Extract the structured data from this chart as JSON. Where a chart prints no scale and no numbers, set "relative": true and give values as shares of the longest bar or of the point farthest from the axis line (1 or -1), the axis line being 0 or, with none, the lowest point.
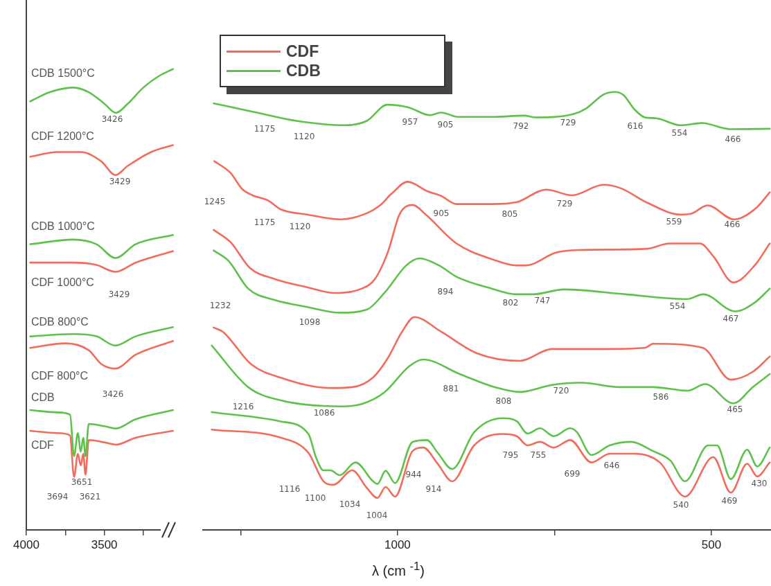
{
  "chart_data": [
    {
      "type": "line",
      "relative": true,
      "xlim": [
        4000,
        3050
      ],
      "xticks": [
        4000,
        {
          "value": 3750,
          "label": null
        },
        3500,
        {
          "value": 3250,
          "label": null
        }
      ],
      "marker": "none",
      "line_style": "solid",
      "series": [
        {
          "name": "CDB 1500°C",
          "color": "#5dc24a",
          "x": [
            3975,
            3850,
            3700,
            3600,
            3500,
            3426,
            3350,
            3250,
            3150,
            3060
          ],
          "values": [
            0.93,
            0.95,
            0.96,
            0.95,
            0.925,
            0.905,
            0.925,
            0.96,
            0.985,
            1.0
          ]
        },
        {
          "name": "CDF 1200°C",
          "color": "#f26b5b",
          "x": [
            3975,
            3800,
            3650,
            3520,
            3429,
            3350,
            3200,
            3060
          ],
          "values": [
            0.81,
            0.82,
            0.82,
            0.8,
            0.77,
            0.79,
            0.82,
            0.835
          ]
        },
        {
          "name": "CDB 1000°C",
          "color": "#5dc24a",
          "x": [
            3975,
            3700,
            3550,
            3429,
            3300,
            3060
          ],
          "values": [
            0.62,
            0.63,
            0.62,
            0.59,
            0.62,
            0.64
          ]
        },
        {
          "name": "CDF 1000°C",
          "color": "#f26b5b",
          "x": [
            3975,
            3700,
            3550,
            3429,
            3300,
            3060
          ],
          "values": [
            0.58,
            0.58,
            0.575,
            0.56,
            0.58,
            0.605
          ]
        },
        {
          "name": "CDB 800°C",
          "color": "#5dc24a",
          "x": [
            3975,
            3700,
            3550,
            3429,
            3300,
            3060
          ],
          "values": [
            0.42,
            0.425,
            0.42,
            0.4,
            0.42,
            0.44
          ]
        },
        {
          "name": "CDF 800°C",
          "color": "#f26b5b",
          "x": [
            3975,
            3750,
            3600,
            3520,
            3429,
            3300,
            3060
          ],
          "values": [
            0.395,
            0.405,
            0.39,
            0.36,
            0.35,
            0.38,
            0.41
          ]
        },
        {
          "name": "CDB",
          "color": "#5dc24a",
          "x": [
            3975,
            3800,
            3720,
            3694,
            3670,
            3651,
            3635,
            3621,
            3600,
            3500,
            3426,
            3300,
            3060
          ],
          "values": [
            0.26,
            0.255,
            0.25,
            0.16,
            0.21,
            0.17,
            0.2,
            0.16,
            0.23,
            0.225,
            0.22,
            0.24,
            0.26
          ]
        },
        {
          "name": "CDF",
          "color": "#f26b5b",
          "x": [
            3975,
            3800,
            3720,
            3694,
            3670,
            3651,
            3635,
            3621,
            3600,
            3500,
            3426,
            3300,
            3060
          ],
          "values": [
            0.215,
            0.21,
            0.205,
            0.115,
            0.165,
            0.14,
            0.165,
            0.12,
            0.195,
            0.19,
            0.185,
            0.2,
            0.215
          ]
        }
      ],
      "annotations": [
        "3426",
        "3429",
        "3429",
        "3426",
        "3651",
        "3694",
        "3621"
      ]
    },
    {
      "type": "line",
      "relative": true,
      "xlim": [
        1310,
        405
      ],
      "xticks": [
        {
          "value": 1250,
          "label": null
        },
        1000,
        {
          "value": 750,
          "label": null
        },
        500
      ],
      "xlabel": "λ (cm $^{-1}$)",
      "marker": "none",
      "line_style": "solid",
      "legend": "top left",
      "series": [
        {
          "color": "#5dc24a",
          "x": [
            1293,
            1231,
            1161,
            1084,
            1049,
            1016,
            983,
            948,
            931,
            903,
            850,
            798,
            780,
            721,
            700,
            672,
            654,
            640,
            623,
            606,
            588,
            549,
            515,
            470,
            407
          ],
          "values": [
            0.974,
            0.955,
            0.934,
            0.924,
            0.934,
            0.971,
            0.965,
            0.947,
            0.953,
            0.943,
            0.943,
            0.946,
            0.942,
            0.949,
            0.962,
            0.994,
            1.0,
            0.993,
            0.961,
            0.942,
            0.94,
            0.924,
            0.929,
            0.915,
            0.916
          ]
        },
        {
          "color": "#f26b5b",
          "x": [
            1292,
            1266,
            1248,
            1231,
            1206,
            1186,
            1144,
            1091,
            1049,
            1028,
            1010,
            984,
            952,
            931,
            906,
            850,
            811,
            763,
            722,
            672,
            644,
            602,
            549,
            532,
            506,
            464,
            428,
            407
          ],
          "values": [
            0.842,
            0.815,
            0.779,
            0.764,
            0.752,
            0.732,
            0.72,
            0.709,
            0.723,
            0.741,
            0.767,
            0.795,
            0.773,
            0.763,
            0.744,
            0.744,
            0.748,
            0.777,
            0.764,
            0.788,
            0.78,
            0.747,
            0.72,
            0.722,
            0.741,
            0.709,
            0.736,
            0.771
          ]
        },
        {
          "color": "#5dc24a",
          "x": [
            1293,
            1269,
            1238,
            1196,
            1144,
            1091,
            1049,
            1021,
            986,
            965,
            934,
            906,
            850,
            811,
            784,
            735,
            637,
            539,
            513,
            462,
            431,
            407
          ],
          "values": [
            0.638,
            0.614,
            0.551,
            0.525,
            0.509,
            0.496,
            0.503,
            0.541,
            0.604,
            0.62,
            0.604,
            0.578,
            0.551,
            0.538,
            0.538,
            0.549,
            0.538,
            0.527,
            0.538,
            0.499,
            0.519,
            0.551
          ]
        },
        {
          "color": "#f26b5b",
          "x": [
            1293,
            1266,
            1235,
            1196,
            1144,
            1099,
            1057,
            1036,
            1015,
            997,
            976,
            955,
            906,
            847,
            811,
            795,
            748,
            714,
            602,
            567,
            518,
            497,
            465,
            431,
            407
          ],
          "values": [
            0.685,
            0.657,
            0.598,
            0.573,
            0.554,
            0.541,
            0.551,
            0.573,
            0.636,
            0.72,
            0.742,
            0.72,
            0.654,
            0.617,
            0.604,
            0.604,
            0.633,
            0.639,
            0.642,
            0.654,
            0.654,
            0.625,
            0.565,
            0.604,
            0.654
          ]
        },
        {
          "color": "#5dc24a",
          "x": [
            1296,
            1238,
            1187,
            1090,
            1056,
            1021,
            981,
            959,
            901,
            845,
            805,
            754,
            708,
            645,
            593,
            537,
            510,
            465,
            434,
            407
          ],
          "values": [
            0.421,
            0.326,
            0.296,
            0.282,
            0.288,
            0.314,
            0.374,
            0.389,
            0.356,
            0.326,
            0.315,
            0.331,
            0.336,
            0.326,
            0.326,
            0.318,
            0.333,
            0.289,
            0.326,
            0.356
          ]
        },
        {
          "color": "#f26b5b",
          "x": [
            1293,
            1278,
            1233,
            1187,
            1107,
            1072,
            1039,
            1016,
            993,
            973,
            930,
            873,
            805,
            754,
            674,
            605,
            593,
            514,
            469,
            434,
            407
          ],
          "values": [
            0.462,
            0.452,
            0.378,
            0.348,
            0.324,
            0.326,
            0.348,
            0.391,
            0.452,
            0.486,
            0.452,
            0.403,
            0.386,
            0.413,
            0.413,
            0.416,
            0.425,
            0.416,
            0.343,
            0.361,
            0.396
          ]
        },
        {
          "name": "CDB",
          "color": "#5dc24a",
          "x": [
            1296,
            1187,
            1142,
            1130,
            1118,
            1107,
            1092,
            1067,
            1039,
            1032,
            1019,
            1004,
            976,
            953,
            936,
            913,
            878,
            833,
            810,
            793,
            773,
            751,
            725,
            714,
            691,
            662,
            628,
            593,
            565,
            542,
            505,
            491,
            469,
            443,
            427,
            407
          ],
          "values": [
            0.269,
            0.248,
            0.219,
            0.166,
            0.136,
            0.136,
            0.125,
            0.154,
            0.111,
            0.105,
            0.135,
            0.107,
            0.201,
            0.205,
            0.176,
            0.139,
            0.223,
            0.255,
            0.248,
            0.22,
            0.232,
            0.214,
            0.232,
            0.223,
            0.171,
            0.193,
            0.201,
            0.18,
            0.158,
            0.111,
            0.193,
            0.193,
            0.116,
            0.183,
            0.145,
            0.188
          ]
        },
        {
          "name": "CDF",
          "color": "#f26b5b",
          "x": [
            1296,
            1187,
            1142,
            1118,
            1102,
            1072,
            1050,
            1032,
            1019,
            1004,
            976,
            959,
            936,
            913,
            878,
            833,
            810,
            793,
            773,
            751,
            725,
            691,
            662,
            622,
            582,
            542,
            497,
            469,
            443,
            427,
            407
          ],
          "values": [
            0.229,
            0.211,
            0.176,
            0.111,
            0.103,
            0.136,
            0.098,
            0.073,
            0.098,
            0.076,
            0.18,
            0.188,
            0.151,
            0.111,
            0.193,
            0.219,
            0.214,
            0.193,
            0.201,
            0.188,
            0.205,
            0.154,
            0.174,
            0.174,
            0.154,
            0.076,
            0.166,
            0.085,
            0.151,
            0.122,
            0.154
          ]
        }
      ],
      "annotations": [
        "1175",
        "1120",
        "957",
        "905",
        "792",
        "729",
        "616",
        "554",
        "466",
        "1245",
        "1175",
        "1120",
        "905",
        "805",
        "729",
        "559",
        "466",
        "1232",
        "1098",
        "894",
        "802",
        "747",
        "554",
        "467",
        "1216",
        "1086",
        "881",
        "808",
        "720",
        "586",
        "465",
        "1116",
        "1100",
        "1034",
        "1004",
        "944",
        "914",
        "795",
        "755",
        "699",
        "646",
        "540",
        "469",
        "430"
      ]
    }
  ]
}
